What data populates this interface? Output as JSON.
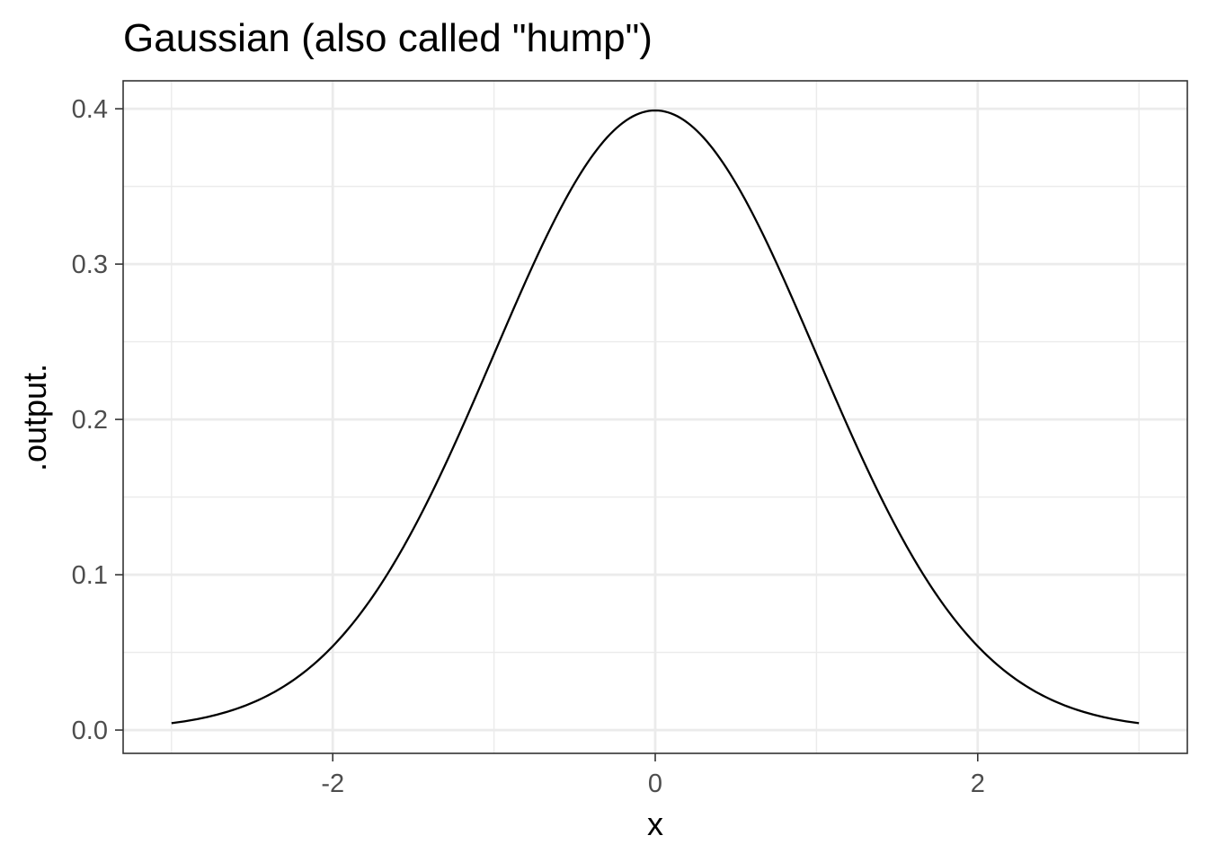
{
  "chart_data": {
    "type": "line",
    "title": "Gaussian (also called \"hump\")",
    "xlabel": "x",
    "ylabel": ".output.",
    "xlim": [
      -3.3,
      3.3
    ],
    "ylim": [
      -0.015,
      0.418
    ],
    "x_ticks": [
      -2,
      0,
      2
    ],
    "x_tick_labels": [
      "-2",
      "0",
      "2"
    ],
    "x_minor_ticks": [
      -3,
      -1,
      1,
      3
    ],
    "y_ticks": [
      0.0,
      0.1,
      0.2,
      0.3,
      0.4
    ],
    "y_tick_labels": [
      "0.0",
      "0.1",
      "0.2",
      "0.3",
      "0.4"
    ],
    "y_minor_ticks": [
      0.05,
      0.15,
      0.25,
      0.35
    ],
    "grid": true,
    "legend": "none",
    "series": [
      {
        "color": "#000000",
        "function": "standard normal density",
        "x_range": [
          -3,
          3
        ],
        "x": [
          -3.0,
          -2.5,
          -2.0,
          -1.5,
          -1.0,
          -0.5,
          0.0,
          0.5,
          1.0,
          1.5,
          2.0,
          2.5,
          3.0
        ],
        "y": [
          0.0044,
          0.0175,
          0.054,
          0.1295,
          0.242,
          0.3521,
          0.3989,
          0.3521,
          0.242,
          0.1295,
          0.054,
          0.0175,
          0.0044
        ]
      }
    ],
    "colors": {
      "panel_border": "#333333",
      "grid_major": "#ebebeb",
      "grid_minor": "#ebebeb",
      "tick_label": "#4d4d4d",
      "line": "#000000"
    }
  }
}
